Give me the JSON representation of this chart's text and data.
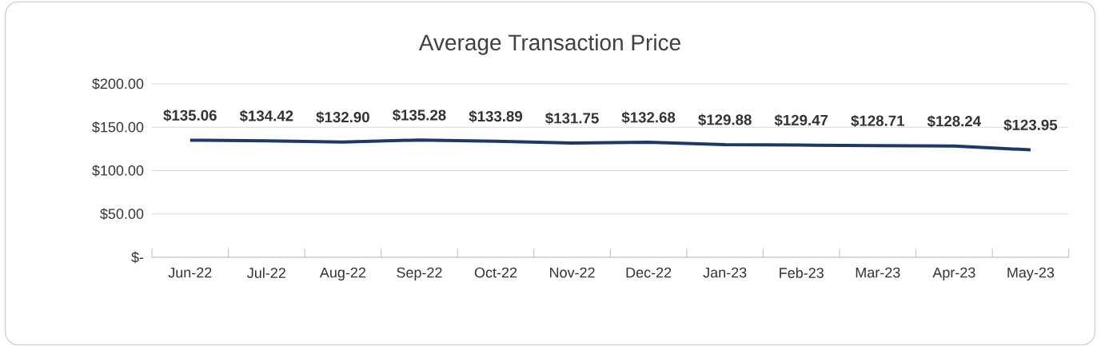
{
  "chart_data": {
    "type": "line",
    "title": "Average Transaction Price",
    "categories": [
      "Jun-22",
      "Jul-22",
      "Aug-22",
      "Sep-22",
      "Oct-22",
      "Nov-22",
      "Dec-22",
      "Jan-23",
      "Feb-23",
      "Mar-23",
      "Apr-23",
      "May-23"
    ],
    "values": [
      135.06,
      134.42,
      132.9,
      135.28,
      133.89,
      131.75,
      132.68,
      129.88,
      129.47,
      128.71,
      128.24,
      123.95
    ],
    "value_labels": [
      "$135.06",
      "$134.42",
      "$132.90",
      "$135.28",
      "$133.89",
      "$131.75",
      "$132.68",
      "$129.88",
      "$129.47",
      "$128.71",
      "$128.24",
      "$123.95"
    ],
    "color": "#1f3864",
    "ylim": [
      0,
      200
    ],
    "yticks": [
      {
        "value": 0,
        "label": "$-"
      },
      {
        "value": 50,
        "label": "$50.00"
      },
      {
        "value": 100,
        "label": "$100.00"
      },
      {
        "value": 150,
        "label": "$150.00"
      },
      {
        "value": 200,
        "label": "$200.00"
      }
    ],
    "grid": "y",
    "marker": "none",
    "line_style": "solid"
  }
}
